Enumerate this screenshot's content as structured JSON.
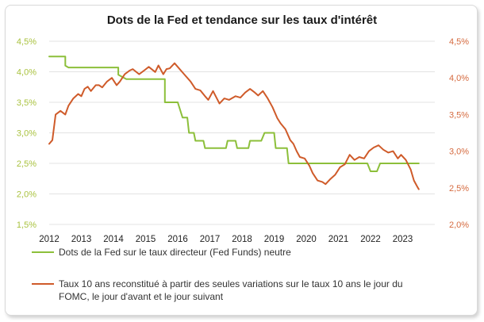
{
  "chart_data": {
    "type": "line",
    "title": "Dots de la Fed et tendance sur les taux d'intérêt",
    "x_ticks": [
      "2012",
      "2013",
      "2014",
      "2015",
      "2016",
      "2017",
      "2018",
      "2019",
      "2020",
      "2021",
      "2022",
      "2023"
    ],
    "x_range": [
      2012,
      2024
    ],
    "left_axis": {
      "range": [
        1.5,
        4.5
      ],
      "ticks": [
        "1,5%",
        "2,0%",
        "2,5%",
        "3,0%",
        "3,5%",
        "4,0%",
        "4,5%"
      ],
      "color": "#a9c23f"
    },
    "right_axis": {
      "range": [
        2.0,
        4.5
      ],
      "ticks": [
        "2,0%",
        "2,5%",
        "3,0%",
        "3,5%",
        "4,0%",
        "4,5%"
      ],
      "color": "#d56a3f"
    },
    "series": [
      {
        "name": "Dots de la Fed sur le taux directeur (Fed Funds) neutre",
        "axis": "left",
        "color": "#8cbf3a",
        "x": [
          2012.0,
          2012.5,
          2012.5,
          2012.6,
          2014.15,
          2014.15,
          2014.4,
          2015.6,
          2015.6,
          2016.0,
          2016.15,
          2016.3,
          2016.35,
          2016.5,
          2016.55,
          2016.8,
          2016.85,
          2017.5,
          2017.55,
          2017.6,
          2017.8,
          2017.85,
          2018.2,
          2018.25,
          2018.6,
          2018.7,
          2018.9,
          2019.0,
          2019.05,
          2019.4,
          2019.45,
          2021.9,
          2022.0,
          2022.2,
          2022.3,
          2023.5
        ],
        "y": [
          4.25,
          4.25,
          4.1,
          4.07,
          4.07,
          3.95,
          3.88,
          3.88,
          3.5,
          3.5,
          3.25,
          3.25,
          3.0,
          3.0,
          2.87,
          2.87,
          2.75,
          2.75,
          2.87,
          2.87,
          2.87,
          2.75,
          2.75,
          2.87,
          2.87,
          3.0,
          3.0,
          3.0,
          2.75,
          2.75,
          2.5,
          2.5,
          2.37,
          2.37,
          2.5,
          2.5
        ]
      },
      {
        "name": "Taux 10 ans reconstitué à partir des seules variations sur le taux 10 ans le jour du FOMC, le jour d'avant et le jour suivant",
        "axis": "right",
        "color": "#cf5b2a",
        "x": [
          2012.0,
          2012.1,
          2012.2,
          2012.35,
          2012.5,
          2012.6,
          2012.75,
          2012.9,
          2013.0,
          2013.1,
          2013.2,
          2013.3,
          2013.45,
          2013.55,
          2013.65,
          2013.8,
          2013.95,
          2014.1,
          2014.2,
          2014.35,
          2014.5,
          2014.6,
          2014.8,
          2014.95,
          2015.1,
          2015.3,
          2015.4,
          2015.55,
          2015.65,
          2015.75,
          2015.9,
          2016.0,
          2016.2,
          2016.4,
          2016.55,
          2016.7,
          2016.85,
          2016.95,
          2017.1,
          2017.3,
          2017.45,
          2017.6,
          2017.8,
          2017.95,
          2018.1,
          2018.25,
          2018.4,
          2018.5,
          2018.65,
          2018.8,
          2018.95,
          2019.1,
          2019.2,
          2019.35,
          2019.5,
          2019.6,
          2019.7,
          2019.8,
          2019.95,
          2020.1,
          2020.2,
          2020.35,
          2020.5,
          2020.6,
          2020.75,
          2020.9,
          2021.05,
          2021.2,
          2021.35,
          2021.5,
          2021.65,
          2021.8,
          2021.95,
          2022.1,
          2022.25,
          2022.4,
          2022.55,
          2022.7,
          2022.85,
          2022.95,
          2023.1,
          2023.25,
          2023.35,
          2023.45,
          2023.5
        ],
        "y": [
          3.1,
          3.15,
          3.5,
          3.55,
          3.5,
          3.62,
          3.72,
          3.78,
          3.75,
          3.85,
          3.88,
          3.82,
          3.9,
          3.9,
          3.87,
          3.95,
          4.0,
          3.9,
          3.95,
          4.05,
          4.1,
          4.12,
          4.05,
          4.1,
          4.15,
          4.08,
          4.17,
          4.05,
          4.12,
          4.13,
          4.2,
          4.15,
          4.05,
          3.95,
          3.85,
          3.83,
          3.75,
          3.7,
          3.82,
          3.65,
          3.72,
          3.7,
          3.75,
          3.73,
          3.8,
          3.85,
          3.8,
          3.76,
          3.82,
          3.72,
          3.6,
          3.45,
          3.38,
          3.3,
          3.15,
          3.1,
          3.0,
          2.92,
          2.9,
          2.8,
          2.7,
          2.6,
          2.58,
          2.55,
          2.62,
          2.68,
          2.78,
          2.82,
          2.95,
          2.88,
          2.92,
          2.9,
          3.0,
          3.05,
          3.08,
          3.02,
          2.98,
          3.0,
          2.9,
          2.95,
          2.88,
          2.75,
          2.6,
          2.52,
          2.48
        ]
      }
    ],
    "legend_position": "bottom"
  }
}
